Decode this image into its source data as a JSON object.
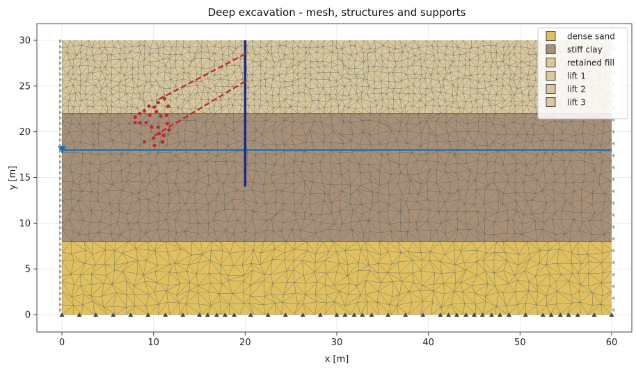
{
  "chart_data": {
    "type": "mesh-plot",
    "title": "Deep excavation - mesh, structures and supports",
    "xlabel": "x [m]",
    "ylabel": "y [m]",
    "xlim": [
      -2,
      61
    ],
    "ylim": [
      -2,
      32
    ],
    "xticks": [
      0,
      10,
      20,
      30,
      40,
      50,
      60
    ],
    "yticks": [
      0,
      5,
      10,
      15,
      20,
      25,
      30
    ],
    "grid": true,
    "legend_position": "top-right",
    "soil_layers": [
      {
        "name": "dense sand",
        "y_bottom": 0,
        "y_top": 8,
        "color": "#e0c060"
      },
      {
        "name": "stiff clay",
        "y_bottom": 8,
        "y_top": 22,
        "color": "#a89078"
      },
      {
        "name": "retained fill",
        "y_bottom": 22,
        "y_top": 30,
        "color": "#d9c89e"
      }
    ],
    "legend": [
      {
        "label": "dense sand",
        "color": "#e0c060"
      },
      {
        "label": "stiff clay",
        "color": "#a89078"
      },
      {
        "label": "retained fill",
        "color": "#d9c89e"
      },
      {
        "label": "lift 1",
        "color": "#d9c89e"
      },
      {
        "label": "lift 2",
        "color": "#d9c89e"
      },
      {
        "label": "lift 3",
        "color": "#d9c89e"
      }
    ],
    "wall": {
      "x": 20,
      "y_from": 14,
      "y_to": 30,
      "color": "#1a2a8a"
    },
    "water_table": {
      "y": 18,
      "x_from": 0,
      "x_to": 60,
      "color": "#1f6fb0"
    },
    "anchors": [
      {
        "from": [
          20,
          28.5
        ],
        "to": [
          10.5,
          23.5
        ]
      },
      {
        "from": [
          20,
          25.5
        ],
        "to": [
          10,
          19.5
        ]
      }
    ],
    "grout_points": [
      [
        11.2,
        23.6
      ],
      [
        10.5,
        23.2
      ],
      [
        11.6,
        22.8
      ],
      [
        10.1,
        22.7
      ],
      [
        9.5,
        22.8
      ],
      [
        9.0,
        22.3
      ],
      [
        10.3,
        22.2
      ],
      [
        8.5,
        22.0
      ],
      [
        9.6,
        21.8
      ],
      [
        8.0,
        21.6
      ],
      [
        10.8,
        21.7
      ],
      [
        11.4,
        21.8
      ],
      [
        8.5,
        21.0
      ],
      [
        9.2,
        21.0
      ],
      [
        8.0,
        21.0
      ],
      [
        11.5,
        20.9
      ],
      [
        10.5,
        20.5
      ],
      [
        11.7,
        20.2
      ],
      [
        9.8,
        20.5
      ],
      [
        10.6,
        19.8
      ],
      [
        10.0,
        19.3
      ],
      [
        11.1,
        19.6
      ],
      [
        9.0,
        18.9
      ],
      [
        11.0,
        18.9
      ],
      [
        10.1,
        18.5
      ]
    ],
    "bottom_supports_x": [
      0,
      1.9,
      3.7,
      5.6,
      7.5,
      9.4,
      11.3,
      13.2,
      15.0,
      15.9,
      16.9,
      17.8,
      18.8,
      20.6,
      22.5,
      24.4,
      26.3,
      28.2,
      30.0,
      30.9,
      31.9,
      32.8,
      33.8,
      35.6,
      37.5,
      39.4,
      41.3,
      42.2,
      43.1,
      44.1,
      45.0,
      45.9,
      46.9,
      47.8,
      48.8,
      50.6,
      52.5,
      53.4,
      54.4,
      55.3,
      56.3,
      58.1,
      60
    ]
  }
}
